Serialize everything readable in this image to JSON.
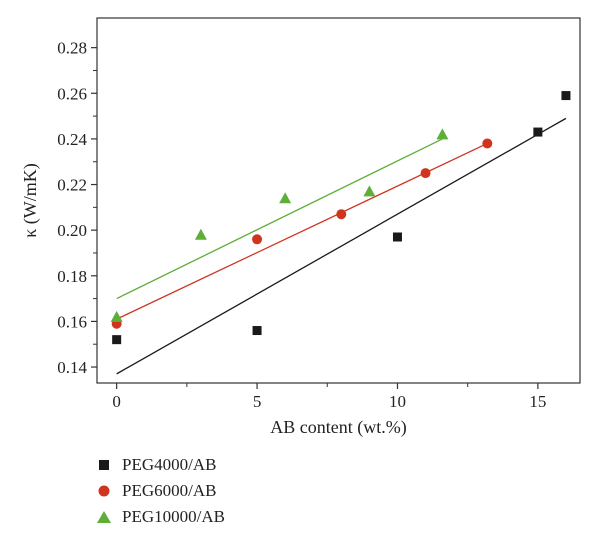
{
  "chart_data": {
    "type": "scatter",
    "xlabel": "AB content (wt.%)",
    "ylabel": "κ (W/mK)",
    "xlim": [
      -0.7,
      16.5
    ],
    "ylim": [
      0.133,
      0.293
    ],
    "xticks": [
      0,
      5,
      10,
      15
    ],
    "yticks": [
      0.14,
      0.16,
      0.18,
      0.2,
      0.22,
      0.24,
      0.26,
      0.28
    ],
    "grid": false,
    "legend_position": "bottom-left, below plot",
    "series": [
      {
        "name": "PEG4000/AB",
        "marker": "square",
        "color": "#1a1a1a",
        "x": [
          0,
          5,
          10,
          15,
          16
        ],
        "y": [
          0.152,
          0.156,
          0.197,
          0.243,
          0.259
        ],
        "fit": {
          "x": [
            0,
            16
          ],
          "y": [
            0.137,
            0.249
          ]
        }
      },
      {
        "name": "PEG6000/AB",
        "marker": "circle",
        "color": "#d0341f",
        "x": [
          0,
          5,
          8,
          11,
          13.2
        ],
        "y": [
          0.159,
          0.196,
          0.207,
          0.225,
          0.238
        ],
        "fit": {
          "x": [
            0,
            13.2
          ],
          "y": [
            0.161,
            0.238
          ]
        }
      },
      {
        "name": "PEG10000/AB",
        "marker": "triangle",
        "color": "#5fae3a",
        "x": [
          0,
          3,
          6,
          9,
          11.6
        ],
        "y": [
          0.162,
          0.198,
          0.214,
          0.217,
          0.242
        ],
        "fit": {
          "x": [
            0,
            11.6
          ],
          "y": [
            0.17,
            0.24
          ]
        }
      }
    ]
  }
}
